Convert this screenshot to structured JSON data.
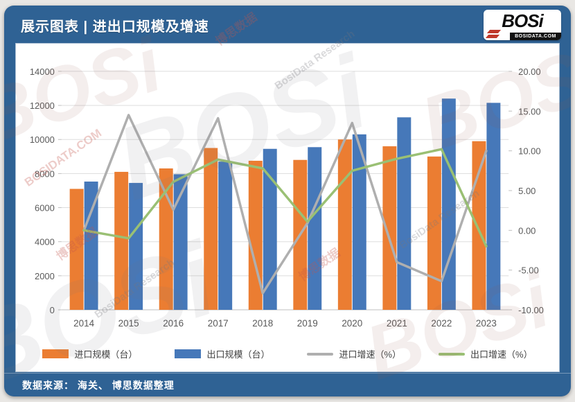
{
  "header": {
    "title": "展示图表 | 进出口规模及增速",
    "logo": {
      "text": "BOSi",
      "subtext": "BOSIDATA.COM"
    }
  },
  "footer": {
    "source": "数据来源： 海关、 博思数据整理"
  },
  "watermark": {
    "brand": "BOSi",
    "name_cn": "博思数据",
    "name_en": "BosiData Research",
    "site": "BOSIDATA.COM"
  },
  "colors": {
    "frame_blue": "#2f6294",
    "import_bar": "#EB7D32",
    "export_bar": "#4678B9",
    "import_line": "#AFAFAF",
    "export_line": "#9AC074",
    "gridline": "#DDDDDD",
    "axis_line": "#BFBFBF",
    "axis_text": "#595959"
  },
  "chart_data": {
    "type": "combo_bar_line",
    "title": "进出口规模及增速",
    "categories": [
      "2014",
      "2015",
      "2016",
      "2017",
      "2018",
      "2019",
      "2020",
      "2021",
      "2022",
      "2023"
    ],
    "series": [
      {
        "name": "进口规模（台）",
        "type": "bar",
        "axis": "left",
        "color": "#EB7D32",
        "values": [
          7100,
          8100,
          8300,
          9500,
          8750,
          8800,
          10000,
          9600,
          9000,
          9900
        ]
      },
      {
        "name": "出口规模（台）",
        "type": "bar",
        "axis": "left",
        "color": "#4678B9",
        "values": [
          7530,
          7450,
          7960,
          8700,
          9450,
          9550,
          10300,
          11300,
          12400,
          12150
        ]
      },
      {
        "name": "进口增速（%）",
        "type": "line",
        "axis": "right",
        "color": "#AFAFAF",
        "values": [
          0.0,
          14.5,
          2.6,
          14.1,
          -7.9,
          0.9,
          13.5,
          -4.0,
          -6.4,
          10.0
        ]
      },
      {
        "name": "出口增速（%）",
        "type": "line",
        "axis": "right",
        "color": "#9AC074",
        "values": [
          0.0,
          -1.0,
          6.1,
          8.9,
          7.8,
          1.1,
          7.5,
          9.0,
          10.2,
          -2.0
        ]
      }
    ],
    "left_axis": {
      "min": 0,
      "max": 14000,
      "step": 2000,
      "ticks": [
        "0",
        "2000",
        "4000",
        "6000",
        "8000",
        "10000",
        "12000",
        "14000"
      ]
    },
    "right_axis": {
      "min": -10,
      "max": 20,
      "step": 5,
      "ticks": [
        "-10.00",
        "-5.00",
        "0.00",
        "5.00",
        "10.00",
        "15.00",
        "20.00"
      ]
    },
    "gridlines": "horizontal",
    "legend_position": "bottom"
  }
}
